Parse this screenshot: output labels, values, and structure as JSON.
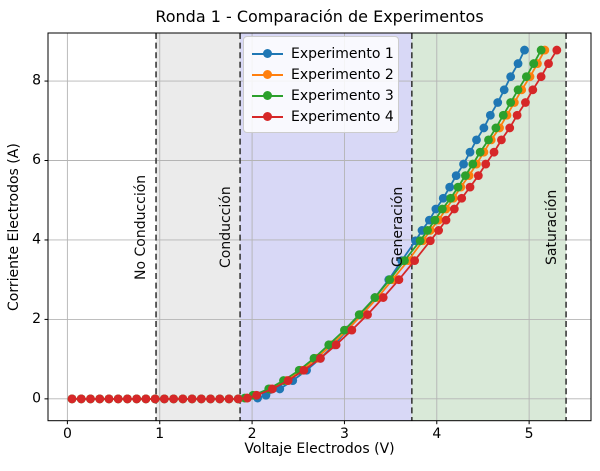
{
  "chart_data": {
    "type": "line",
    "title": "Ronda 1 - Comparación de Experimentos",
    "xlabel": "Voltaje Electrodos (V)",
    "ylabel": "Corriente Electrodos (A)",
    "xlim": [
      -0.21,
      5.67
    ],
    "ylim": [
      -0.55,
      9.21
    ],
    "xticks": [
      0,
      1,
      2,
      3,
      4,
      5
    ],
    "yticks": [
      0,
      2,
      4,
      6,
      8
    ],
    "grid": true,
    "grid_color": "#b4b4b4",
    "legend_position": "upper-center-inside",
    "spans": [
      {
        "from": 0.96,
        "to": 1.87,
        "color": "#ebebeb"
      },
      {
        "from": 1.87,
        "to": 3.73,
        "color": "#d8d8f6"
      },
      {
        "from": 3.73,
        "to": 5.4,
        "color": "#d9e9d8"
      }
    ],
    "vlines": [
      {
        "x": 0.96,
        "label": "No Conducción"
      },
      {
        "x": 1.87,
        "label": "Conducción"
      },
      {
        "x": 3.73,
        "label": "Generación"
      },
      {
        "x": 5.4,
        "label": "Saturación"
      }
    ],
    "vline_color": "#3a3a3a",
    "series": [
      {
        "label": "Experimento 1",
        "color": "#1f77b4",
        "x": [
          0.05,
          0.15,
          0.25,
          0.35,
          0.45,
          0.55,
          0.65,
          0.75,
          0.85,
          0.95,
          1.05,
          1.15,
          1.25,
          1.35,
          1.45,
          1.55,
          1.65,
          1.75,
          1.85,
          2.06,
          2.15,
          2.3,
          2.44,
          2.59,
          2.74,
          2.89,
          3.03,
          3.18,
          3.33,
          3.48,
          3.62,
          3.77,
          3.84,
          3.92,
          3.99,
          4.07,
          4.14,
          4.21,
          4.29,
          4.36,
          4.43,
          4.51,
          4.58,
          4.66,
          4.73,
          4.8,
          4.88,
          4.95
        ],
        "y": [
          0,
          0,
          0,
          0,
          0,
          0,
          0,
          0,
          0,
          0,
          0,
          0,
          0,
          0,
          0,
          0,
          0,
          0,
          0,
          0.02,
          0.09,
          0.25,
          0.46,
          0.72,
          1.02,
          1.36,
          1.73,
          2.12,
          2.55,
          3.0,
          3.48,
          3.98,
          4.24,
          4.5,
          4.78,
          5.05,
          5.33,
          5.62,
          5.91,
          6.21,
          6.52,
          6.82,
          7.14,
          7.46,
          7.78,
          8.11,
          8.44,
          8.78
        ]
      },
      {
        "label": "Experimento 2",
        "color": "#ff7f0e",
        "x": [
          0.05,
          0.15,
          0.25,
          0.35,
          0.45,
          0.55,
          0.65,
          0.75,
          0.85,
          0.95,
          1.05,
          1.15,
          1.25,
          1.35,
          1.45,
          1.55,
          1.65,
          1.75,
          1.85,
          1.94,
          2.04,
          2.2,
          2.37,
          2.53,
          2.7,
          2.86,
          3.03,
          3.19,
          3.36,
          3.52,
          3.69,
          3.85,
          3.93,
          4.02,
          4.1,
          4.18,
          4.26,
          4.35,
          4.43,
          4.51,
          4.59,
          4.68,
          4.76,
          4.84,
          4.92,
          5.01,
          5.09,
          5.17
        ],
        "y": [
          0,
          0,
          0,
          0,
          0,
          0,
          0,
          0,
          0,
          0,
          0,
          0,
          0,
          0,
          0,
          0,
          0,
          0,
          0,
          0.02,
          0.09,
          0.25,
          0.46,
          0.72,
          1.02,
          1.36,
          1.73,
          2.12,
          2.55,
          3.0,
          3.48,
          3.98,
          4.24,
          4.5,
          4.78,
          5.05,
          5.33,
          5.62,
          5.91,
          6.21,
          6.52,
          6.82,
          7.14,
          7.46,
          7.78,
          8.11,
          8.44,
          8.78
        ]
      },
      {
        "label": "Experimento 3",
        "color": "#2ca02c",
        "x": [
          0.05,
          0.15,
          0.25,
          0.35,
          0.45,
          0.55,
          0.65,
          0.75,
          0.85,
          0.95,
          1.05,
          1.15,
          1.25,
          1.35,
          1.45,
          1.55,
          1.65,
          1.75,
          1.85,
          1.92,
          2.01,
          2.18,
          2.34,
          2.51,
          2.67,
          2.83,
          3.0,
          3.16,
          3.33,
          3.49,
          3.65,
          3.82,
          3.9,
          3.98,
          4.06,
          4.15,
          4.23,
          4.31,
          4.39,
          4.47,
          4.56,
          4.64,
          4.72,
          4.8,
          4.88,
          4.97,
          5.05,
          5.13
        ],
        "y": [
          0,
          0,
          0,
          0,
          0,
          0,
          0,
          0,
          0,
          0,
          0,
          0,
          0,
          0,
          0,
          0,
          0,
          0,
          0,
          0.02,
          0.09,
          0.25,
          0.46,
          0.72,
          1.02,
          1.36,
          1.73,
          2.12,
          2.55,
          3.0,
          3.48,
          3.98,
          4.24,
          4.5,
          4.78,
          5.05,
          5.33,
          5.62,
          5.91,
          6.21,
          6.52,
          6.82,
          7.14,
          7.46,
          7.78,
          8.11,
          8.44,
          8.78
        ]
      },
      {
        "label": "Experimento 4",
        "color": "#d62728",
        "x": [
          0.05,
          0.15,
          0.25,
          0.35,
          0.45,
          0.55,
          0.65,
          0.75,
          0.85,
          0.95,
          1.05,
          1.15,
          1.25,
          1.35,
          1.45,
          1.55,
          1.65,
          1.75,
          1.85,
          1.95,
          2.05,
          2.22,
          2.39,
          2.56,
          2.74,
          2.91,
          3.08,
          3.25,
          3.42,
          3.59,
          3.76,
          3.93,
          4.02,
          4.1,
          4.19,
          4.27,
          4.36,
          4.45,
          4.53,
          4.62,
          4.7,
          4.79,
          4.87,
          4.96,
          5.04,
          5.13,
          5.21,
          5.3
        ],
        "y": [
          0,
          0,
          0,
          0,
          0,
          0,
          0,
          0,
          0,
          0,
          0,
          0,
          0,
          0,
          0,
          0,
          0,
          0,
          0,
          0.02,
          0.09,
          0.25,
          0.46,
          0.72,
          1.02,
          1.36,
          1.73,
          2.12,
          2.55,
          3.0,
          3.48,
          3.98,
          4.24,
          4.5,
          4.78,
          5.05,
          5.33,
          5.62,
          5.91,
          6.21,
          6.52,
          6.82,
          7.14,
          7.46,
          7.78,
          8.11,
          8.44,
          8.78
        ]
      }
    ]
  }
}
